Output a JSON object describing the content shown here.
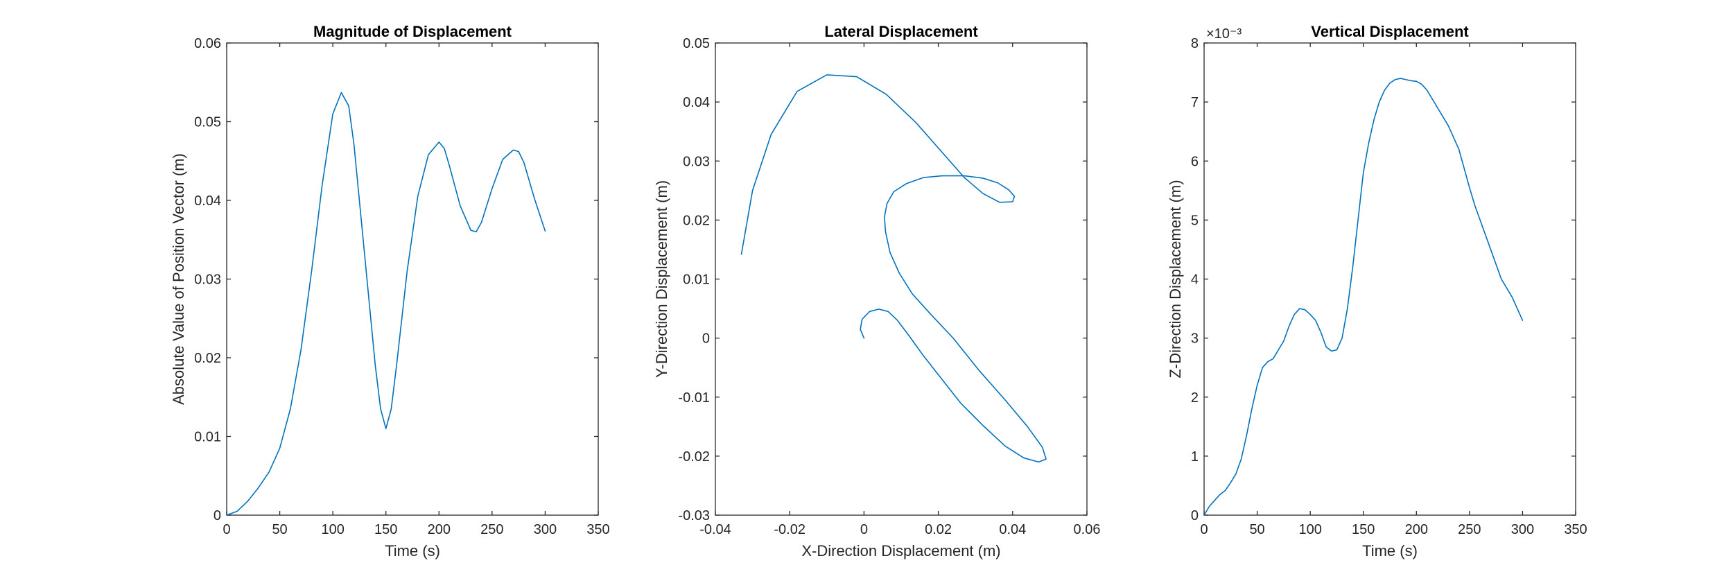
{
  "colors": {
    "series": "#0072BD",
    "axis": "#262626"
  },
  "chart_data": [
    {
      "type": "line",
      "title": "Magnitude of Displacement",
      "xlabel": "Time (s)",
      "ylabel": "Absolute Value of Position Vector (m)",
      "xlim": [
        0,
        350
      ],
      "ylim": [
        0,
        0.06
      ],
      "xticks": [
        "0",
        "50",
        "100",
        "150",
        "200",
        "250",
        "300",
        "350"
      ],
      "yticks": [
        "0",
        "0.01",
        "0.02",
        "0.03",
        "0.04",
        "0.05",
        "0.06"
      ],
      "exponent": "",
      "grid": false,
      "series": [
        {
          "x": [
            0,
            10,
            20,
            30,
            40,
            50,
            60,
            70,
            80,
            90,
            100,
            108,
            115,
            120,
            130,
            140,
            145,
            150,
            155,
            160,
            170,
            180,
            190,
            200,
            205,
            210,
            220,
            230,
            235,
            240,
            250,
            260,
            270,
            275,
            280,
            290,
            300
          ],
          "y": [
            0.0,
            0.0005,
            0.0018,
            0.0035,
            0.0055,
            0.0085,
            0.0135,
            0.021,
            0.031,
            0.042,
            0.051,
            0.0537,
            0.052,
            0.047,
            0.033,
            0.019,
            0.0135,
            0.011,
            0.0135,
            0.019,
            0.031,
            0.0405,
            0.0458,
            0.0474,
            0.0466,
            0.0443,
            0.0393,
            0.0362,
            0.036,
            0.0372,
            0.0415,
            0.0452,
            0.0464,
            0.0462,
            0.0448,
            0.0402,
            0.0361
          ]
        }
      ]
    },
    {
      "type": "line",
      "title": "Lateral Displacement",
      "xlabel": "X-Direction Displacement (m)",
      "ylabel": "Y-Direction Displacement (m)",
      "xlim": [
        -0.04,
        0.06
      ],
      "ylim": [
        -0.03,
        0.05
      ],
      "xticks": [
        "-0.04",
        "-0.02",
        "0",
        "0.02",
        "0.04",
        "0.06"
      ],
      "yticks": [
        "-0.03",
        "-0.02",
        "-0.01",
        "0",
        "0.01",
        "0.02",
        "0.03",
        "0.04",
        "0.05"
      ],
      "exponent": "",
      "grid": false,
      "series": [
        {
          "x": [
            0.0,
            -0.001,
            -0.0005,
            0.0015,
            0.004,
            0.0065,
            0.009,
            0.012,
            0.016,
            0.021,
            0.026,
            0.032,
            0.038,
            0.043,
            0.047,
            0.049,
            0.048,
            0.044,
            0.038,
            0.031,
            0.024,
            0.018,
            0.013,
            0.0095,
            0.007,
            0.0058,
            0.0055,
            0.0062,
            0.008,
            0.0115,
            0.016,
            0.021,
            0.027,
            0.032,
            0.036,
            0.039,
            0.0405,
            0.04,
            0.0365,
            0.032,
            0.027,
            0.021,
            0.014,
            0.006,
            -0.002,
            -0.01,
            -0.018,
            -0.025,
            -0.03,
            -0.033
          ],
          "y": [
            0.0,
            0.0015,
            0.0032,
            0.0045,
            0.0049,
            0.0045,
            0.003,
            0.0005,
            -0.003,
            -0.007,
            -0.011,
            -0.0148,
            -0.0183,
            -0.0203,
            -0.021,
            -0.0205,
            -0.0185,
            -0.015,
            -0.0105,
            -0.0055,
            0.0,
            0.004,
            0.0075,
            0.011,
            0.0145,
            0.018,
            0.0205,
            0.0228,
            0.0248,
            0.0262,
            0.0272,
            0.0275,
            0.0275,
            0.0271,
            0.0263,
            0.0251,
            0.024,
            0.0231,
            0.023,
            0.0245,
            0.0272,
            0.0315,
            0.0365,
            0.0413,
            0.0443,
            0.0446,
            0.0418,
            0.0345,
            0.025,
            0.0142
          ]
        }
      ]
    },
    {
      "type": "line",
      "title": "Vertical Displacement",
      "xlabel": "Time (s)",
      "ylabel": "Z-Direction Displacement (m)",
      "xlim": [
        0,
        350
      ],
      "ylim": [
        0,
        8
      ],
      "xticks": [
        "0",
        "50",
        "100",
        "150",
        "200",
        "250",
        "300",
        "350"
      ],
      "yticks": [
        "0",
        "1",
        "2",
        "3",
        "4",
        "5",
        "6",
        "7",
        "8"
      ],
      "exponent": "×10⁻³",
      "grid": false,
      "series": [
        {
          "x": [
            0,
            5,
            10,
            15,
            20,
            25,
            30,
            35,
            40,
            45,
            50,
            55,
            60,
            65,
            70,
            75,
            80,
            85,
            90,
            95,
            100,
            105,
            110,
            115,
            120,
            125,
            130,
            135,
            140,
            145,
            150,
            155,
            160,
            165,
            170,
            175,
            180,
            185,
            190,
            195,
            200,
            205,
            210,
            215,
            220,
            230,
            240,
            250,
            255,
            260,
            270,
            280,
            290,
            295,
            300
          ],
          "y": [
            0.0,
            0.15,
            0.25,
            0.35,
            0.42,
            0.55,
            0.7,
            0.95,
            1.35,
            1.8,
            2.2,
            2.5,
            2.6,
            2.65,
            2.8,
            2.95,
            3.2,
            3.4,
            3.5,
            3.48,
            3.4,
            3.3,
            3.1,
            2.85,
            2.78,
            2.8,
            3.0,
            3.5,
            4.2,
            5.0,
            5.8,
            6.3,
            6.7,
            7.0,
            7.2,
            7.32,
            7.38,
            7.4,
            7.38,
            7.36,
            7.35,
            7.3,
            7.2,
            7.05,
            6.9,
            6.6,
            6.2,
            5.55,
            5.25,
            5.0,
            4.5,
            4.0,
            3.7,
            3.5,
            3.3
          ]
        }
      ]
    }
  ]
}
